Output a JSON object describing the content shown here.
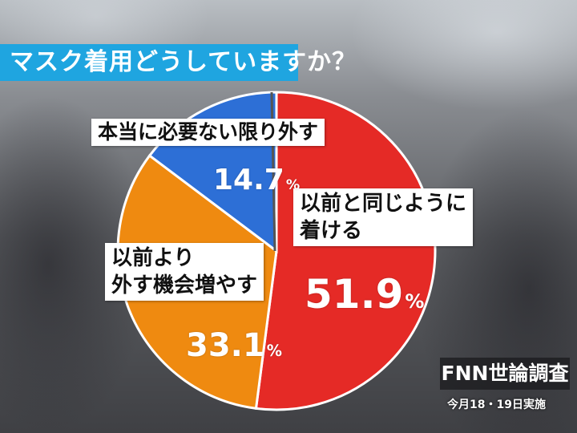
{
  "title": "マスク着用どうしていますか？",
  "chart_data": {
    "type": "pie",
    "slices": [
      {
        "label_lines": [
          "以前と同じように",
          "着ける"
        ],
        "value": 51.9,
        "display": "51.9",
        "color": "#e52a26"
      },
      {
        "label_lines": [
          "以前より",
          "外す機会増やす"
        ],
        "value": 33.1,
        "display": "33.1",
        "color": "#ef8a10"
      },
      {
        "label_lines": [
          "本当に必要ない限り外す"
        ],
        "value": 14.7,
        "display": "14.7",
        "color": "#2d6fd6"
      }
    ],
    "unit": "%"
  },
  "source": "FNN世論調査",
  "date_note": "今月18・19日実施"
}
